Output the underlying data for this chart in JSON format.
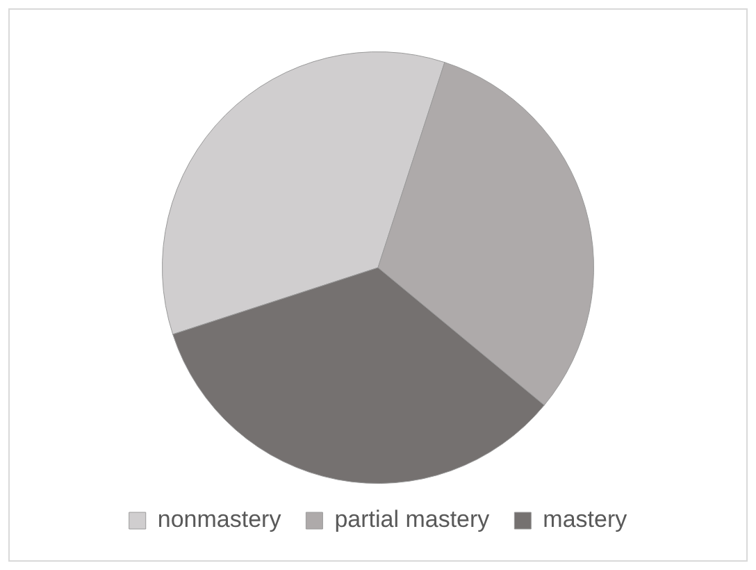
{
  "chart_data": {
    "type": "pie",
    "categories": [
      "nonmastery",
      "partial mastery",
      "mastery"
    ],
    "values": [
      35,
      31,
      34
    ],
    "colors": [
      "#d0cecf",
      "#aeaaaa",
      "#757170"
    ],
    "legend": "bottom"
  }
}
